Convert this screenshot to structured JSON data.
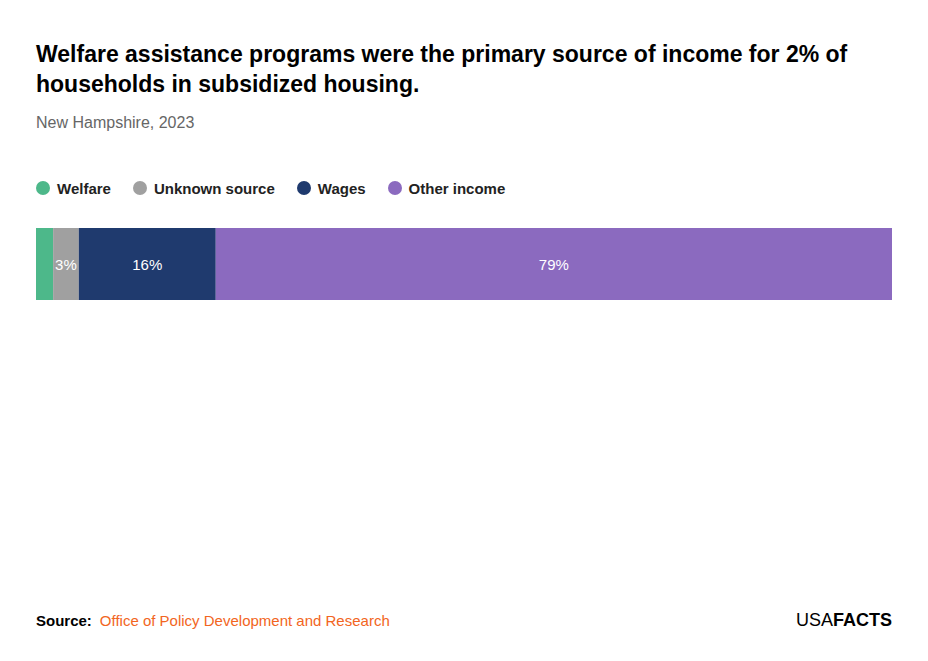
{
  "chart_data": {
    "type": "bar",
    "orientation": "horizontal",
    "stacked": true,
    "title": "Welfare assistance programs were the primary source of income for 2% of\nhouseholds in subsidized housing.",
    "subtitle": "New Hampshire, 2023",
    "categories": [
      null
    ],
    "series": [
      {
        "name": "Welfare",
        "color": "#4db88a",
        "values": [
          2
        ],
        "value_labels": [
          null
        ]
      },
      {
        "name": "Unknown source",
        "color": "#a0a0a0",
        "values": [
          3
        ],
        "value_labels": [
          "3%"
        ]
      },
      {
        "name": "Wages",
        "color": "#1f3a6e",
        "values": [
          16
        ],
        "value_labels": [
          "16%"
        ]
      },
      {
        "name": "Other income",
        "color": "#8b6abf",
        "values": [
          79
        ],
        "value_labels": [
          "79%"
        ]
      }
    ],
    "xlim": [
      0,
      100
    ],
    "tick_labels": false,
    "grid": false,
    "legend": "top-left",
    "data_labels": true,
    "annotations": [
      "Source:",
      "Office of Policy Development and Research",
      "USA",
      "FACTS"
    ]
  }
}
